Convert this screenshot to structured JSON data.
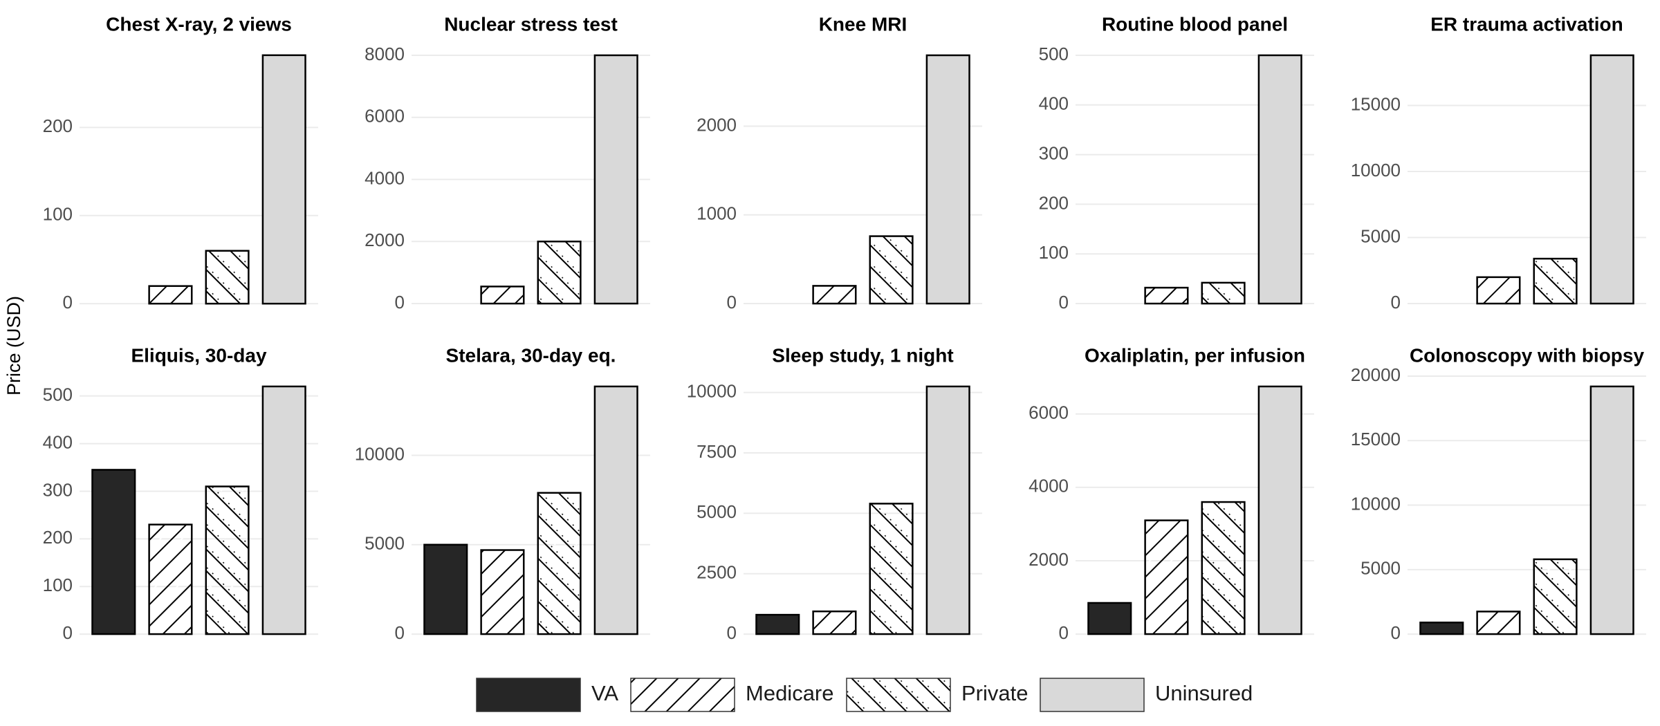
{
  "chart_data": {
    "type": "bar",
    "ylabel": "Price (USD)",
    "grid": true,
    "legend_position": "bottom",
    "series": [
      {
        "name": "VA",
        "color": "#262626",
        "pattern": "none"
      },
      {
        "name": "Medicare",
        "color": "#a6a6a6",
        "pattern": "stripe"
      },
      {
        "name": "Private",
        "color": "#bfbfbf",
        "pattern": "crosshatch"
      },
      {
        "name": "Uninsured",
        "color": "#d9d9d9",
        "pattern": "none"
      }
    ],
    "panels": [
      {
        "title": "Chest X-ray, 2 views",
        "values": [
          null,
          20,
          60,
          282
        ],
        "ylim": [
          -14,
          296
        ],
        "yticks": [
          0,
          100,
          200
        ]
      },
      {
        "title": "Nuclear stress test",
        "values": [
          null,
          550,
          2000,
          8000
        ],
        "ylim": [
          -400,
          8400
        ],
        "yticks": [
          0,
          2000,
          4000,
          6000,
          8000
        ]
      },
      {
        "title": "Knee MRI",
        "values": [
          null,
          200,
          760,
          2800
        ],
        "ylim": [
          -140,
          2940
        ],
        "yticks": [
          0,
          1000,
          2000
        ]
      },
      {
        "title": "Routine blood panel",
        "values": [
          null,
          32,
          42,
          500
        ],
        "ylim": [
          -25,
          525
        ],
        "yticks": [
          0,
          100,
          200,
          300,
          400,
          500
        ]
      },
      {
        "title": "ER trauma activation",
        "values": [
          null,
          2000,
          3400,
          18800
        ],
        "ylim": [
          -940,
          19740
        ],
        "yticks": [
          0,
          5000,
          10000,
          15000
        ]
      },
      {
        "title": "Eliquis, 30-day",
        "values": [
          345,
          230,
          310,
          520
        ],
        "ylim": [
          -26,
          546
        ],
        "yticks": [
          0,
          100,
          200,
          300,
          400,
          500
        ]
      },
      {
        "title": "Stelara, 30-day eq.",
        "values": [
          5000,
          4700,
          7900,
          13850
        ],
        "ylim": [
          -693,
          14543
        ],
        "yticks": [
          0,
          5000,
          10000
        ]
      },
      {
        "title": "Sleep study, 1 night",
        "values": [
          800,
          940,
          5400,
          10250
        ],
        "ylim": [
          -513,
          10763
        ],
        "yticks": [
          0,
          2500,
          5000,
          7500,
          10000
        ]
      },
      {
        "title": "Oxaliplatin, per infusion",
        "values": [
          850,
          3100,
          3600,
          6750
        ],
        "ylim": [
          -338,
          7088
        ],
        "yticks": [
          0,
          2000,
          4000,
          6000
        ]
      },
      {
        "title": "Colonoscopy with biopsy",
        "values": [
          900,
          1750,
          5800,
          19200
        ],
        "ylim": [
          -960,
          20160
        ],
        "yticks": [
          0,
          5000,
          10000,
          15000,
          20000
        ]
      }
    ]
  }
}
